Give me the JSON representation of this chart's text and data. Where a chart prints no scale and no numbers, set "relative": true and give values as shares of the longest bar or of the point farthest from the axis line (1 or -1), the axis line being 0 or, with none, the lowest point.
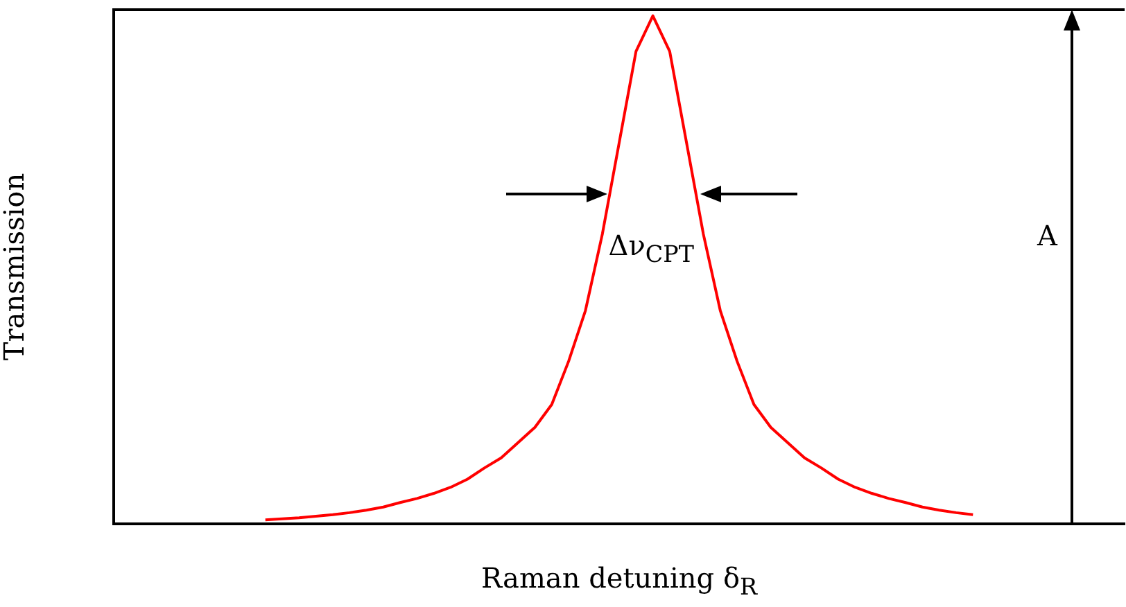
{
  "chart_data": {
    "type": "line",
    "relative": true,
    "xlabel": "Raman detuning δ$_{R}$",
    "ylabel": "Transmission",
    "categories": [
      null,
      null,
      null,
      null,
      null,
      null,
      null,
      null,
      null,
      null,
      null,
      null,
      null,
      null,
      null,
      null,
      null,
      null,
      null,
      null,
      null,
      null,
      null,
      null,
      null,
      null,
      null,
      null,
      null,
      null,
      null,
      null,
      null,
      null,
      null,
      null,
      null,
      null,
      null,
      null,
      null,
      null,
      null,
      null,
      null,
      null,
      null,
      null,
      null,
      null,
      null,
      null,
      null,
      null,
      null,
      null,
      null,
      null,
      null,
      null,
      null
    ],
    "series": [
      {
        "color": "#ff0000",
        "values": [
          null,
          null,
          null,
          null,
          null,
          null,
          null,
          null,
          null,
          0.008,
          0.01,
          0.012,
          0.015,
          0.018,
          0.022,
          0.027,
          0.033,
          0.042,
          0.05,
          0.06,
          0.072,
          0.088,
          0.11,
          0.13,
          0.16,
          0.19,
          0.235,
          0.32,
          0.42,
          0.57,
          0.75,
          0.93,
          1,
          0.93,
          0.75,
          0.57,
          0.42,
          0.32,
          0.235,
          0.19,
          0.16,
          0.13,
          0.11,
          0.088,
          0.072,
          0.06,
          0.05,
          0.042,
          0.033,
          0.027,
          0.022,
          0.018,
          null,
          null,
          null,
          null,
          null,
          null,
          null,
          null,
          null
        ]
      }
    ],
    "annotations": [
      "Δν$_{CPT}$",
      "A"
    ],
    "legend": false,
    "grid": false,
    "marker": "none",
    "line_style": "solid"
  }
}
